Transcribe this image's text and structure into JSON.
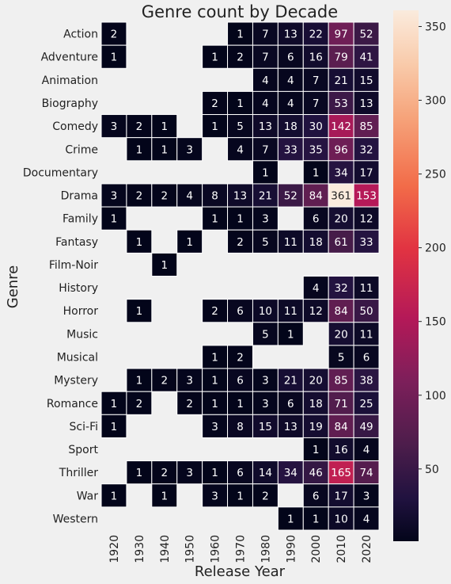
{
  "chart_data": {
    "type": "heatmap",
    "title": "Genre count by Decade",
    "xlabel": "Release Year",
    "ylabel": "Genre",
    "x_categories": [
      "1920",
      "1930",
      "1940",
      "1950",
      "1960",
      "1970",
      "1980",
      "1990",
      "2000",
      "2010",
      "2020"
    ],
    "y_categories": [
      "Action",
      "Adventure",
      "Animation",
      "Biography",
      "Comedy",
      "Crime",
      "Documentary",
      "Drama",
      "Family",
      "Fantasy",
      "Film-Noir",
      "History",
      "Horror",
      "Music",
      "Musical",
      "Mystery",
      "Romance",
      "Sci-Fi",
      "Sport",
      "Thriller",
      "War",
      "Western"
    ],
    "values": [
      [
        2,
        null,
        null,
        null,
        null,
        1,
        7,
        13,
        22,
        97,
        52
      ],
      [
        1,
        null,
        null,
        null,
        1,
        2,
        7,
        6,
        16,
        79,
        41
      ],
      [
        null,
        null,
        null,
        null,
        null,
        null,
        4,
        4,
        7,
        21,
        15
      ],
      [
        null,
        null,
        null,
        null,
        2,
        1,
        4,
        4,
        7,
        53,
        13
      ],
      [
        3,
        2,
        1,
        null,
        1,
        5,
        13,
        18,
        30,
        142,
        85
      ],
      [
        null,
        1,
        1,
        3,
        null,
        4,
        7,
        33,
        35,
        96,
        32
      ],
      [
        null,
        null,
        null,
        null,
        null,
        null,
        1,
        null,
        1,
        34,
        17
      ],
      [
        3,
        2,
        2,
        4,
        8,
        13,
        21,
        52,
        84,
        361,
        153
      ],
      [
        1,
        null,
        null,
        null,
        1,
        1,
        3,
        null,
        6,
        20,
        12
      ],
      [
        null,
        1,
        null,
        1,
        null,
        2,
        5,
        11,
        18,
        61,
        33
      ],
      [
        null,
        null,
        1,
        null,
        null,
        null,
        null,
        null,
        null,
        null,
        null
      ],
      [
        null,
        null,
        null,
        null,
        null,
        null,
        null,
        null,
        4,
        32,
        11
      ],
      [
        null,
        1,
        null,
        null,
        2,
        6,
        10,
        11,
        12,
        84,
        50
      ],
      [
        null,
        null,
        null,
        null,
        null,
        null,
        5,
        1,
        null,
        20,
        11
      ],
      [
        null,
        null,
        null,
        null,
        1,
        2,
        null,
        null,
        null,
        5,
        6
      ],
      [
        null,
        1,
        2,
        3,
        1,
        6,
        3,
        21,
        20,
        85,
        38
      ],
      [
        1,
        2,
        null,
        2,
        1,
        1,
        3,
        6,
        18,
        71,
        25
      ],
      [
        1,
        null,
        null,
        null,
        3,
        8,
        15,
        13,
        19,
        84,
        49
      ],
      [
        null,
        null,
        null,
        null,
        null,
        null,
        null,
        null,
        1,
        16,
        4
      ],
      [
        null,
        1,
        2,
        3,
        1,
        6,
        14,
        34,
        46,
        165,
        74
      ],
      [
        1,
        null,
        1,
        null,
        3,
        1,
        2,
        null,
        6,
        17,
        3
      ],
      [
        null,
        null,
        null,
        null,
        null,
        null,
        null,
        1,
        1,
        10,
        4
      ]
    ],
    "colorbar": {
      "min": 1,
      "max": 361,
      "ticks": [
        50,
        100,
        150,
        200,
        250,
        300,
        350
      ],
      "colormap": "rocket"
    },
    "empty_cell_color": "#f0f0f0",
    "grid_color": "#ffffff"
  }
}
